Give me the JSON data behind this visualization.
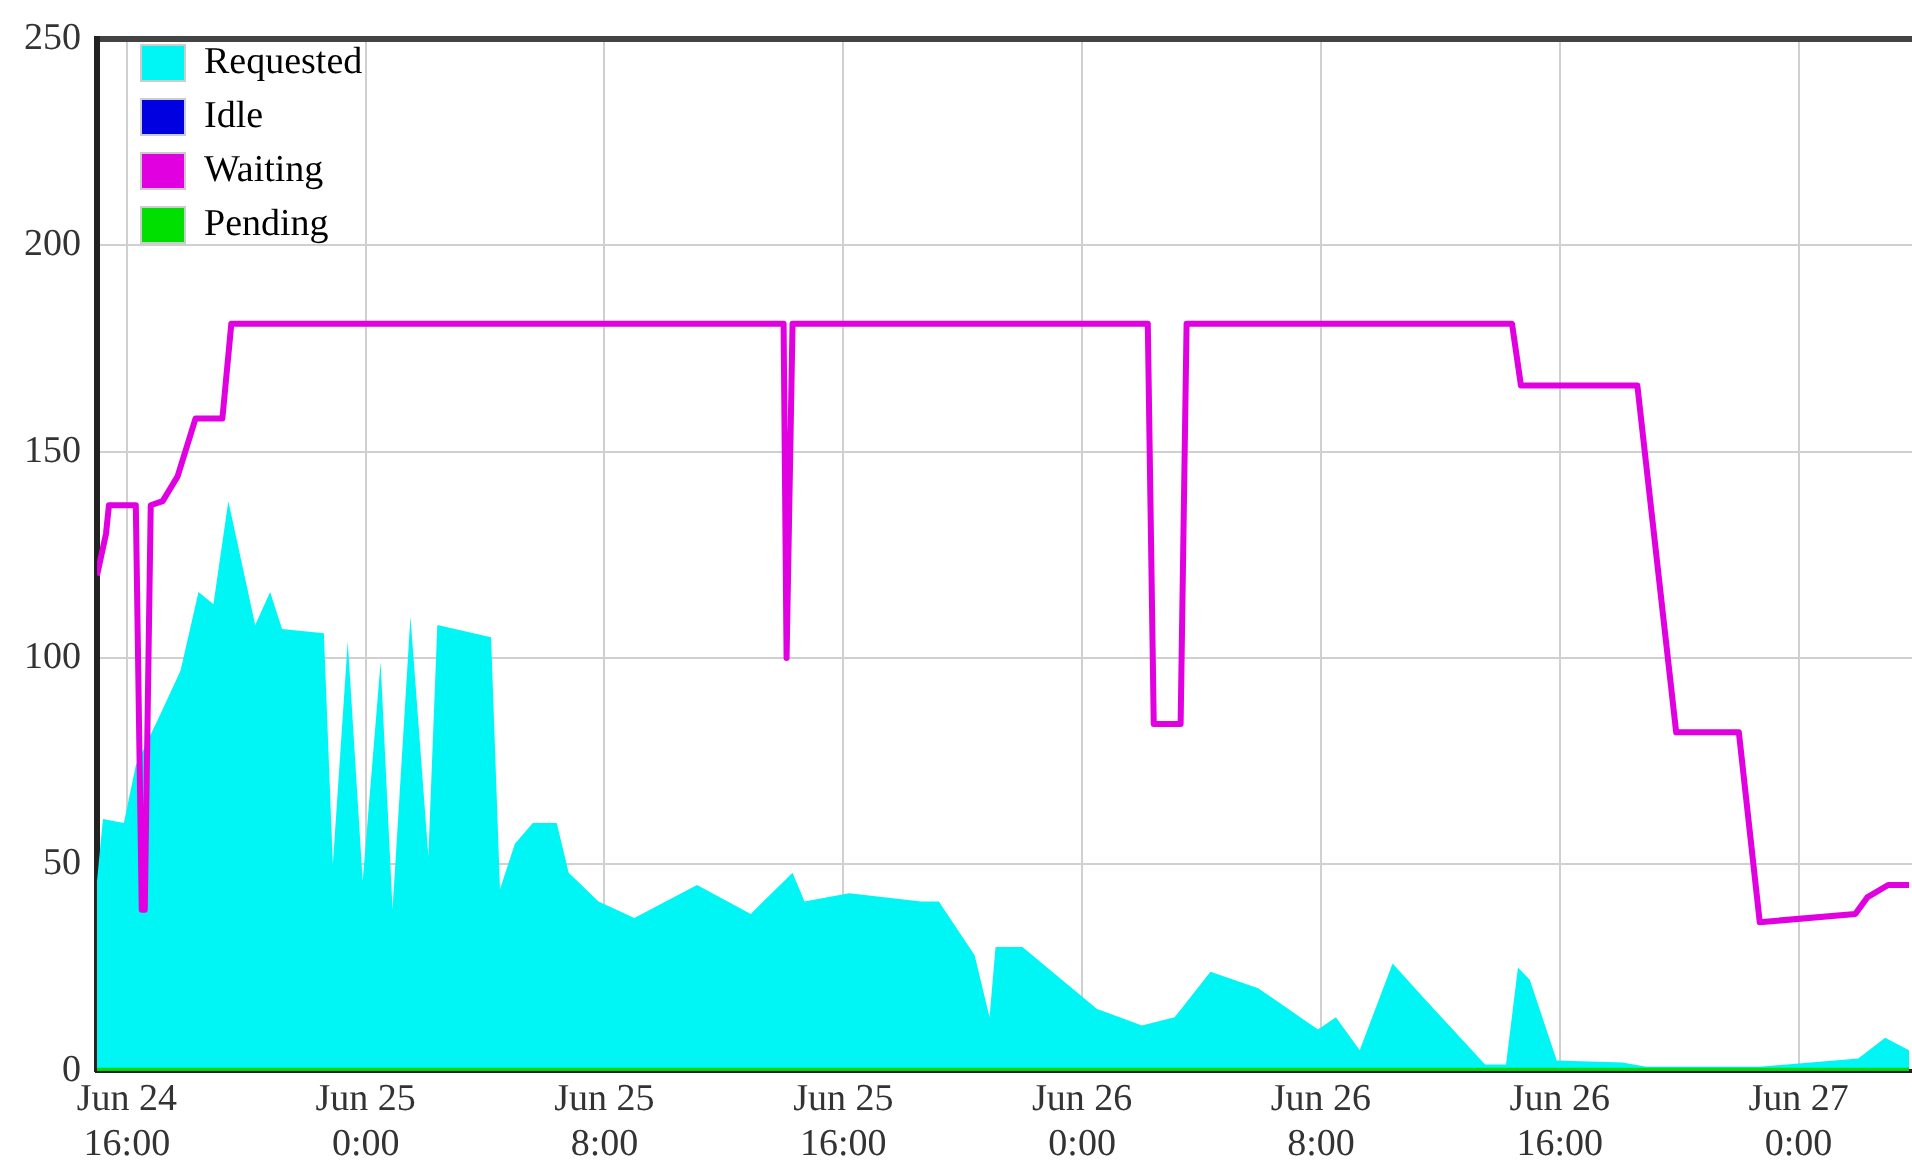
{
  "chart_data": {
    "type": "line",
    "xlim": [
      "--06-24T15:00",
      "--06-27T03:48"
    ],
    "ylim": [
      0,
      250
    ],
    "yticks": [
      0,
      50,
      100,
      150,
      200,
      250
    ],
    "xticks": [
      {
        "value": "--06-24T16:00",
        "label": "Jun 24\n16:00"
      },
      {
        "value": "--06-25T00:00",
        "label": "Jun 25\n0:00"
      },
      {
        "value": "--06-25T08:00",
        "label": "Jun 25\n8:00"
      },
      {
        "value": "--06-25T16:00",
        "label": "Jun 25\n16:00"
      },
      {
        "value": "--06-26T00:00",
        "label": "Jun 26\n0:00"
      },
      {
        "value": "--06-26T08:00",
        "label": "Jun 26\n8:00"
      },
      {
        "value": "--06-26T16:00",
        "label": "Jun 26\n16:00"
      },
      {
        "value": "--06-27T00:00",
        "label": "Jun 27\n0:00"
      }
    ],
    "grid": true,
    "legend": "top left",
    "series": [
      {
        "name": "Requested",
        "type": "area",
        "color": "#00f5f5",
        "x": [
          "--06-24T15:00",
          "--06-24T15:12",
          "--06-24T15:54",
          "--06-24T16:18",
          "--06-24T17:06",
          "--06-24T17:48",
          "--06-24T18:24",
          "--06-24T18:54",
          "--06-24T19:24",
          "--06-24T20:18",
          "--06-24T20:48",
          "--06-24T21:12",
          "--06-24T22:36",
          "--06-24T22:54",
          "--06-24T23:24",
          "--06-24T23:54",
          "--06-25T00:30",
          "--06-25T00:54",
          "--06-25T01:30",
          "--06-25T02:06",
          "--06-25T02:24",
          "--06-25T04:12",
          "--06-25T04:30",
          "--06-25T05:00",
          "--06-25T05:36",
          "--06-25T06:24",
          "--06-25T06:48",
          "--06-25T07:48",
          "--06-25T09:00",
          "--06-25T11:06",
          "--06-25T12:54",
          "--06-25T14:18",
          "--06-25T14:42",
          "--06-25T16:12",
          "--06-25T18:36",
          "--06-25T19:12",
          "--06-25T20:24",
          "--06-25T20:54",
          "--06-25T21:06",
          "--06-25T22:00",
          "--06-26T00:30",
          "--06-26T02:00",
          "--06-26T03:06",
          "--06-26T04:18",
          "--06-26T05:54",
          "--06-26T07:54",
          "--06-26T08:30",
          "--06-26T09:18",
          "--06-26T10:24",
          "--06-26T11:24",
          "--06-26T13:30",
          "--06-26T14:12",
          "--06-26T14:36",
          "--06-26T15:00",
          "--06-26T15:54",
          "--06-26T18:06",
          "--06-26T18:54",
          "--06-26T22:42",
          "--06-27T02:00",
          "--06-27T02:54",
          "--06-27T03:42"
        ],
        "values": [
          46,
          61,
          60,
          74,
          86,
          97,
          116,
          113,
          138,
          108,
          116,
          107,
          106,
          50,
          104,
          46,
          99,
          39,
          110,
          52,
          108,
          105,
          44,
          55,
          60,
          60,
          48,
          41,
          37,
          45,
          38,
          48,
          41,
          43,
          41,
          41,
          28,
          13,
          30,
          30,
          15,
          11,
          13,
          24,
          20,
          10,
          13,
          5,
          26,
          18,
          1.5,
          1.5,
          25,
          22,
          2.5,
          2,
          1,
          1,
          3,
          8,
          5
        ]
      },
      {
        "name": "Idle",
        "type": "line",
        "color": "#0000e0"
      },
      {
        "name": "Waiting",
        "type": "line",
        "color": "#e000e0",
        "x": [
          "--06-24T15:00",
          "--06-24T15:18",
          "--06-24T15:24",
          "--06-24T16:18",
          "--06-24T16:30",
          "--06-24T16:36",
          "--06-24T16:48",
          "--06-24T17:12",
          "--06-24T17:42",
          "--06-24T18:18",
          "--06-24T19:12",
          "--06-24T19:30",
          "--06-25T14:00",
          "--06-25T14:06",
          "--06-25T14:18",
          "--06-26T02:12",
          "--06-26T02:24",
          "--06-26T03:18",
          "--06-26T03:30",
          "--06-26T14:24",
          "--06-26T14:42",
          "--06-26T18:36",
          "--06-26T19:54",
          "--06-26T22:00",
          "--06-26T22:42",
          "--06-27T01:54",
          "--06-27T02:18",
          "--06-27T03:00",
          "--06-27T03:42"
        ],
        "values": [
          120,
          130,
          137,
          137,
          39,
          39,
          137,
          138,
          144,
          158,
          158,
          181,
          181,
          100,
          181,
          181,
          84,
          84,
          181,
          181,
          166,
          166,
          82,
          82,
          36,
          38,
          42,
          45,
          45
        ]
      },
      {
        "name": "Pending",
        "type": "line",
        "color": "#00e000",
        "x": [
          "--06-24T15:00",
          "--06-27T03:42"
        ],
        "values": [
          0,
          0
        ]
      }
    ]
  }
}
